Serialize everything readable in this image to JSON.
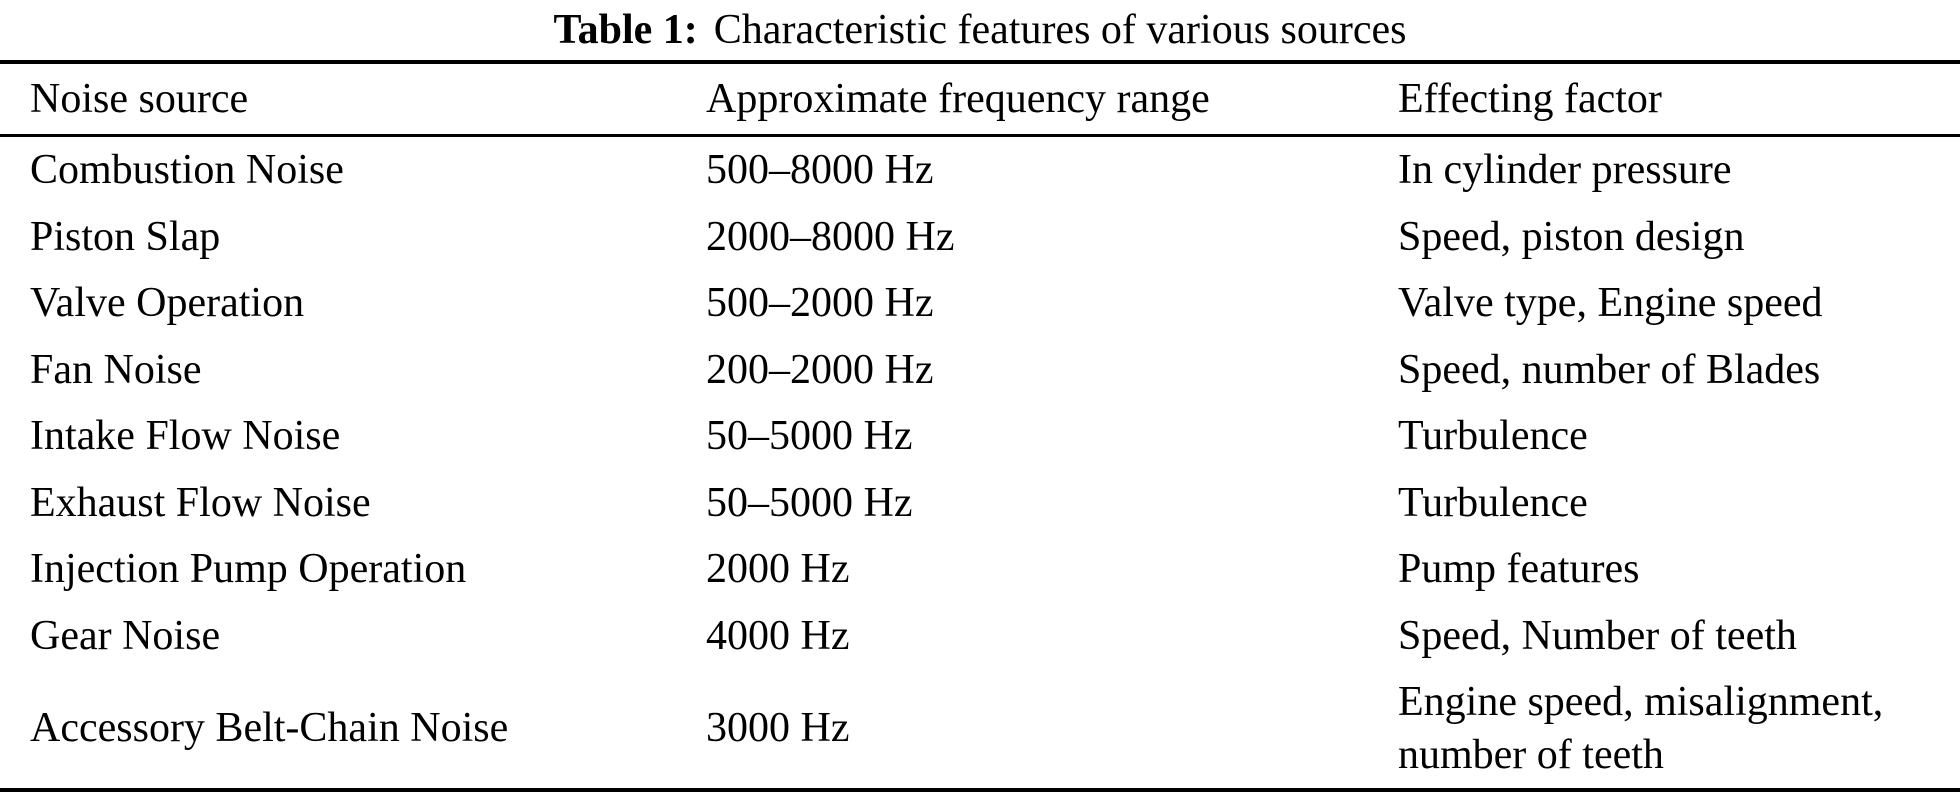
{
  "caption": {
    "label": "Table 1:",
    "text": "Characteristic features of various sources"
  },
  "table": {
    "headers": [
      "Noise source",
      "Approximate frequency range",
      "Effecting factor"
    ],
    "rows": [
      [
        "Combustion Noise",
        "500–8000 Hz",
        "In cylinder pressure"
      ],
      [
        "Piston Slap",
        "2000–8000 Hz",
        "Speed, piston design"
      ],
      [
        "Valve Operation",
        "500–2000 Hz",
        "Valve type, Engine speed"
      ],
      [
        "Fan Noise",
        "200–2000 Hz",
        "Speed, number of Blades"
      ],
      [
        "Intake Flow Noise",
        "50–5000 Hz",
        "Turbulence"
      ],
      [
        "Exhaust Flow Noise",
        "50–5000 Hz",
        "Turbulence"
      ],
      [
        "Injection Pump Operation",
        "2000 Hz",
        "Pump features"
      ],
      [
        "Gear Noise",
        "4000 Hz",
        "Speed, Number of teeth"
      ],
      [
        "Accessory Belt-Chain Noise",
        "3000 Hz",
        "Engine speed, misalignment, number of teeth"
      ]
    ]
  },
  "colors": {
    "text": "#000000",
    "background": "#ffffff",
    "rule": "#000000"
  }
}
